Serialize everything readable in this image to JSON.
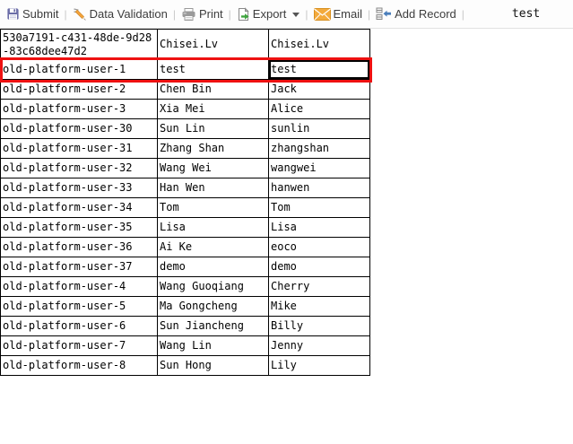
{
  "toolbar": {
    "items": [
      {
        "label": "Submit"
      },
      {
        "label": "Data Validation"
      },
      {
        "label": "Print"
      },
      {
        "label": "Export",
        "has_dropdown": true
      },
      {
        "label": "Email"
      },
      {
        "label": "Add Record"
      }
    ],
    "right_text": "test"
  },
  "table": {
    "rows": [
      [
        "530a7191-c431-48de-9d28-83c68dee47d2",
        "Chisei.Lv",
        "Chisei.Lv"
      ],
      [
        "old-platform-user-1",
        "test",
        "test"
      ],
      [
        "old-platform-user-2",
        "Chen Bin",
        "Jack"
      ],
      [
        "old-platform-user-3",
        "Xia Mei",
        "Alice"
      ],
      [
        "old-platform-user-30",
        "Sun Lin",
        "sunlin"
      ],
      [
        "old-platform-user-31",
        "Zhang Shan",
        "zhangshan"
      ],
      [
        "old-platform-user-32",
        "Wang Wei",
        "wangwei"
      ],
      [
        "old-platform-user-33",
        "Han Wen",
        "hanwen"
      ],
      [
        "old-platform-user-34",
        "Tom",
        "Tom"
      ],
      [
        "old-platform-user-35",
        "Lisa",
        "Lisa"
      ],
      [
        "old-platform-user-36",
        "Ai Ke",
        "eoco"
      ],
      [
        "old-platform-user-37",
        "demo",
        "demo"
      ],
      [
        "old-platform-user-4",
        "Wang Guoqiang",
        "Cherry"
      ],
      [
        "old-platform-user-5",
        "Ma Gongcheng",
        "Mike"
      ],
      [
        "old-platform-user-6",
        "Sun Jiancheng",
        "Billy"
      ],
      [
        "old-platform-user-7",
        "Wang Lin",
        "Jenny"
      ],
      [
        "old-platform-user-8",
        "Sun Hong",
        "Lily"
      ]
    ],
    "highlighted_row_index": 1,
    "selected_cell": {
      "row": 1,
      "col": 2
    }
  },
  "colors": {
    "row_highlight_border": "#ee1111",
    "selected_cell_border": "#000000",
    "toolbar_text": "#3d3d3d",
    "save_icon": "#6b6da8",
    "pencil_icon": "#f5a33a",
    "print_icon": "#9a9a9a",
    "export_arrow": "#3fa43f",
    "email_icon": "#f3aa3c",
    "add_record_arrow": "#4a7ebb"
  }
}
